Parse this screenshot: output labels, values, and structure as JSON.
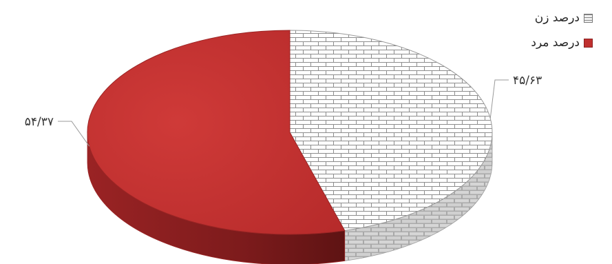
{
  "chart_data": {
    "type": "pie",
    "title": "",
    "categories": [
      "درصد زن",
      "درصد مرد"
    ],
    "values": [
      45.63,
      54.37
    ],
    "data_labels": [
      "۴۵/۶۳",
      "۵۴/۳۷"
    ],
    "legend_position": "top-right",
    "colors": {
      "female": "#ffffff",
      "male": "#c0302f"
    }
  },
  "legend": {
    "items": [
      {
        "label": "درصد زن",
        "swatch": "brick-pattern"
      },
      {
        "label": "درصد مرد",
        "swatch": "solid-red"
      }
    ]
  }
}
